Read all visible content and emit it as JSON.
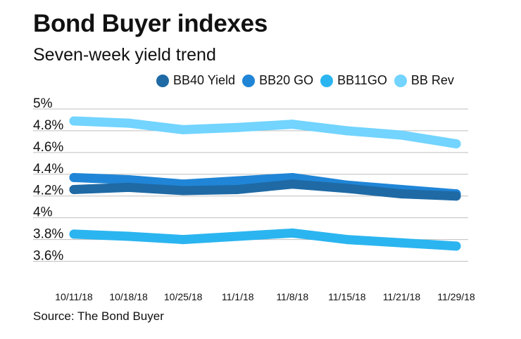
{
  "title": "Bond Buyer indexes",
  "subtitle": "Seven-week yield trend",
  "source": "Source: The Bond Buyer",
  "chart_data": {
    "type": "line",
    "categories": [
      "10/11/18",
      "10/18/18",
      "10/25/18",
      "11/1/18",
      "11/8/18",
      "11/15/18",
      "11/21/18",
      "11/29/18"
    ],
    "y_tick_labels": [
      "5%",
      "4.8%",
      "4.6%",
      "4.4%",
      "4.2%",
      "4%",
      "3.8%",
      "3.6%"
    ],
    "y_ticks": [
      5.0,
      4.8,
      4.6,
      4.4,
      4.2,
      4.0,
      3.8,
      3.6
    ],
    "ylim": [
      3.5,
      5.0
    ],
    "grid": true,
    "legend_position": "top",
    "series": [
      {
        "name": "BB40 Yield",
        "color": "#1f6aa5",
        "values": [
          4.26,
          4.28,
          4.25,
          4.26,
          4.31,
          4.27,
          4.22,
          4.2
        ]
      },
      {
        "name": "BB20 GO",
        "color": "#2085d6",
        "values": [
          4.37,
          4.35,
          4.31,
          4.34,
          4.37,
          4.3,
          4.26,
          4.22
        ]
      },
      {
        "name": "BB11GO",
        "color": "#2bb5f0",
        "values": [
          3.85,
          3.83,
          3.8,
          3.83,
          3.86,
          3.8,
          3.77,
          3.74
        ]
      },
      {
        "name": "BB Rev",
        "color": "#72d4ff",
        "values": [
          4.89,
          4.87,
          4.81,
          4.83,
          4.86,
          4.8,
          4.76,
          4.68
        ]
      }
    ]
  }
}
